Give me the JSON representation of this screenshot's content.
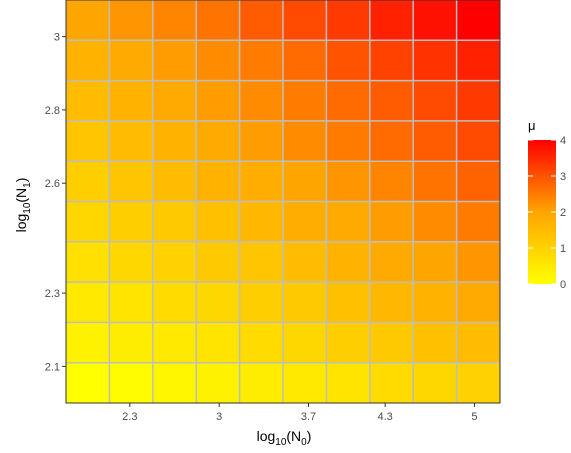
{
  "chart_data": {
    "type": "heatmap",
    "x_tick_labels": [
      "2.3",
      "3",
      "3.7",
      "4.3",
      "5"
    ],
    "x_tick_values": [
      2.3,
      3.0,
      3.7,
      4.3,
      5.0
    ],
    "y_tick_labels": [
      "2.1",
      "2.3",
      "2.6",
      "2.8",
      "3"
    ],
    "y_tick_values": [
      2.1,
      2.3,
      2.6,
      2.8,
      3.0
    ],
    "xlim": [
      1.8,
      5.2
    ],
    "ylim": [
      2.0,
      3.1
    ],
    "xlabel_main": "log",
    "xlabel_sub": "10",
    "xlabel_paren_open": "(N",
    "xlabel_inner_sub": "0",
    "xlabel_paren_close": ")",
    "ylabel_main": "log",
    "ylabel_sub": "10",
    "ylabel_paren_open": "(N",
    "ylabel_inner_sub": "1",
    "ylabel_paren_close": ")",
    "x_cols": 10,
    "y_rows": 10,
    "values": [
      [
        0.0,
        0.1,
        0.2,
        0.3,
        0.4,
        0.5,
        0.6,
        0.8,
        0.9,
        1.0
      ],
      [
        0.3,
        0.4,
        0.5,
        0.6,
        0.8,
        0.9,
        1.1,
        1.2,
        1.4,
        1.5
      ],
      [
        0.5,
        0.6,
        0.8,
        0.9,
        1.1,
        1.2,
        1.4,
        1.6,
        1.7,
        1.9
      ],
      [
        0.7,
        0.9,
        1.0,
        1.2,
        1.3,
        1.5,
        1.7,
        1.9,
        2.0,
        2.2
      ],
      [
        0.9,
        1.1,
        1.2,
        1.4,
        1.6,
        1.8,
        1.9,
        2.1,
        2.3,
        2.5
      ],
      [
        1.1,
        1.3,
        1.5,
        1.7,
        1.8,
        2.0,
        2.2,
        2.4,
        2.6,
        2.8
      ],
      [
        1.3,
        1.5,
        1.7,
        1.9,
        2.1,
        2.3,
        2.5,
        2.7,
        2.9,
        3.1
      ],
      [
        1.5,
        1.7,
        1.9,
        2.1,
        2.3,
        2.5,
        2.7,
        2.9,
        3.1,
        3.3
      ],
      [
        1.7,
        1.9,
        2.1,
        2.3,
        2.5,
        2.7,
        3.0,
        3.2,
        3.4,
        3.6
      ],
      [
        2.0,
        2.2,
        2.4,
        2.6,
        2.9,
        3.1,
        3.3,
        3.6,
        3.8,
        4.0
      ]
    ],
    "legend": {
      "title": "μ",
      "labels": [
        "4",
        "3",
        "2",
        "1",
        "0"
      ],
      "values": [
        4,
        3,
        2,
        1,
        0
      ],
      "min": 0,
      "max": 4,
      "colors": [
        "#FFFF00",
        "#FFA500",
        "#FF0000"
      ]
    },
    "grid": true,
    "grid_color": "#BEBEBE",
    "legend_position": "right"
  }
}
